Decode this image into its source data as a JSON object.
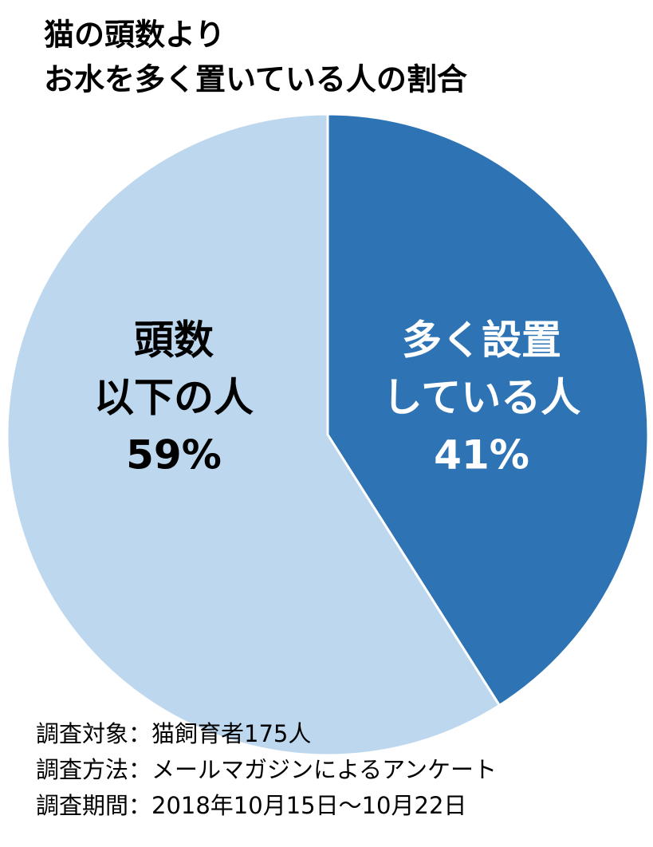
{
  "chart_data": {
    "type": "pie",
    "title": [
      "猫の頭数より",
      "お水を多く置いている人の割合"
    ],
    "categories": [
      [
        "多く設置",
        "している人"
      ],
      [
        "頭数",
        "以下の人"
      ]
    ],
    "values": [
      41,
      59
    ],
    "value_labels": [
      "41%",
      "59%"
    ],
    "colors": [
      "#2e74b5",
      "#bdd7ee"
    ],
    "label_colors": [
      "#ffffff",
      "#000000"
    ],
    "notes": [
      "調査対象：猫飼育者175人",
      "調査方法：メールマガジンによるアンケート",
      "調査期間：2018年10月15日～10月22日"
    ]
  }
}
